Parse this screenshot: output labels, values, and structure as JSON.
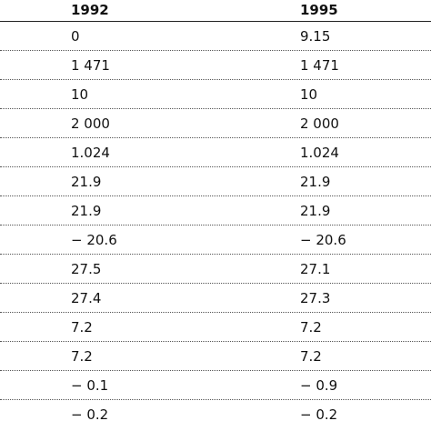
{
  "table": {
    "header": [
      "1992",
      "1995"
    ],
    "rows": [
      [
        "0",
        "9.15"
      ],
      [
        "1 471",
        "1 471"
      ],
      [
        "10",
        "10"
      ],
      [
        "2 000",
        "2 000"
      ],
      [
        "1.024",
        "1.024"
      ],
      [
        "21.9",
        "21.9"
      ],
      [
        "21.9",
        "21.9"
      ],
      [
        "− 20.6",
        "− 20.6"
      ],
      [
        "27.5",
        "27.1"
      ],
      [
        "27.4",
        "27.3"
      ],
      [
        "7.2",
        "7.2"
      ],
      [
        "7.2",
        "7.2"
      ],
      [
        "− 0.1",
        "− 0.9"
      ],
      [
        "− 0.2",
        "− 0.2"
      ]
    ]
  }
}
